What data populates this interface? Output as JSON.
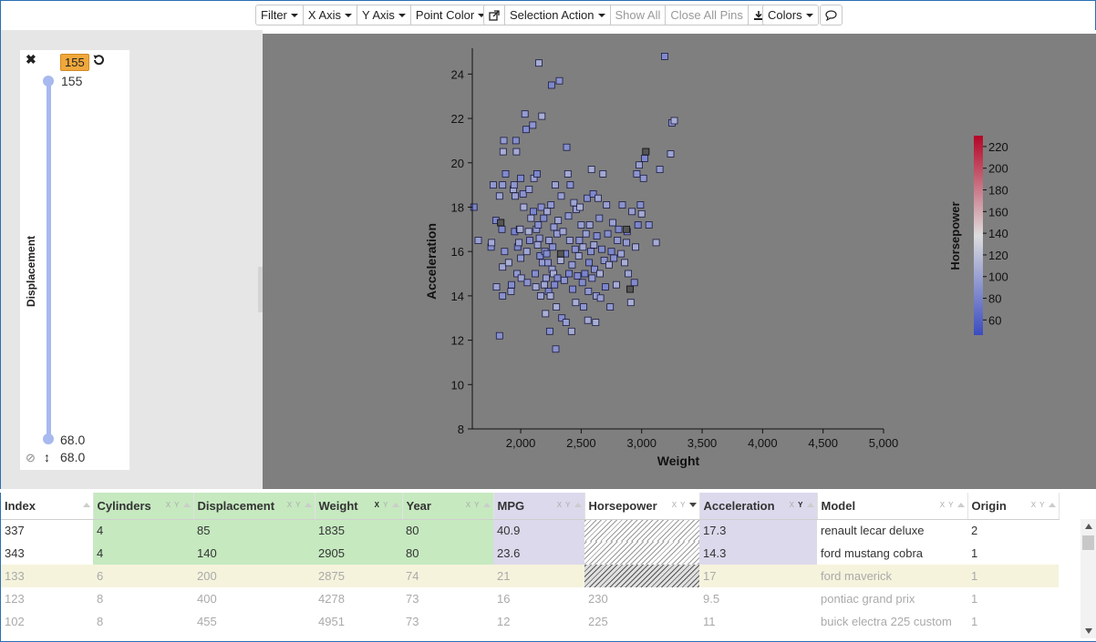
{
  "toolbar": {
    "filter": "Filter",
    "x_axis": "X Axis",
    "y_axis": "Y Axis",
    "point_color": "Point Color",
    "selection_action": "Selection Action",
    "show_all": "Show All",
    "close_all_pins": "Close All Pins",
    "colors": "Colors"
  },
  "filter_panel": {
    "field": "Displacement",
    "badge": "155",
    "upper_value": "155",
    "lower_value": "68.0",
    "lower_value_2": "68.0"
  },
  "chart_data": {
    "type": "scatter",
    "xlabel": "Weight",
    "ylabel": "Acceleration",
    "xlim": [
      1600,
      5000
    ],
    "ylim": [
      8,
      25
    ],
    "x_ticks": [
      "2,000",
      "2,500",
      "3,000",
      "3,500",
      "4,000",
      "4,500",
      "5,000"
    ],
    "x_tick_values": [
      2000,
      2500,
      3000,
      3500,
      4000,
      4500,
      5000
    ],
    "y_ticks": [
      "8",
      "10",
      "12",
      "14",
      "16",
      "18",
      "20",
      "22",
      "24"
    ],
    "y_tick_values": [
      8,
      10,
      12,
      14,
      16,
      18,
      20,
      22,
      24
    ],
    "legend": {
      "title": "Horsepower",
      "ticks": [
        "60",
        "80",
        "100",
        "120",
        "140",
        "160",
        "180",
        "200",
        "220"
      ],
      "tick_values": [
        60,
        80,
        100,
        120,
        140,
        160,
        180,
        200,
        220
      ],
      "min": 46,
      "max": 230,
      "placement": "right"
    },
    "colors": {
      "low": "#3b4cc0",
      "mid": "#dddddd",
      "high": "#b40426",
      "missing": "#555555"
    },
    "points": [
      [
        1613,
        18
      ],
      [
        1649,
        16.5
      ],
      [
        1755,
        16.2
      ],
      [
        1760,
        16.4
      ],
      [
        1773,
        19
      ],
      [
        1795,
        17.4
      ],
      [
        1800,
        14.4
      ],
      [
        1825,
        12.2
      ],
      [
        1835,
        17.3
      ],
      [
        1850,
        19
      ],
      [
        1845,
        17
      ],
      [
        1825,
        18.5
      ],
      [
        1850,
        14
      ],
      [
        1855,
        20.5
      ],
      [
        1860,
        21
      ],
      [
        1875,
        19.5
      ],
      [
        1850,
        15.3
      ],
      [
        1867,
        16
      ],
      [
        1900,
        15.5
      ],
      [
        1920,
        14.2
      ],
      [
        1925,
        14.5
      ],
      [
        1940,
        18.8
      ],
      [
        1945,
        19
      ],
      [
        1950,
        16.9
      ],
      [
        1955,
        18.5
      ],
      [
        1960,
        21
      ],
      [
        1965,
        20.5
      ],
      [
        1970,
        15
      ],
      [
        1975,
        16.2
      ],
      [
        1985,
        16.4
      ],
      [
        1990,
        17
      ],
      [
        1995,
        17
      ],
      [
        2000,
        15.7
      ],
      [
        2000,
        19.3
      ],
      [
        2005,
        14.8
      ],
      [
        2020,
        18.6
      ],
      [
        2025,
        18
      ],
      [
        2035,
        22.2
      ],
      [
        2045,
        21.5
      ],
      [
        2050,
        16
      ],
      [
        2055,
        14.6
      ],
      [
        2065,
        16.9
      ],
      [
        2070,
        18.8
      ],
      [
        2075,
        16.5
      ],
      [
        2085,
        17.5
      ],
      [
        2100,
        21.7
      ],
      [
        2105,
        17.8
      ],
      [
        2110,
        19.3
      ],
      [
        2120,
        15
      ],
      [
        2125,
        14.4
      ],
      [
        2130,
        17
      ],
      [
        2135,
        19.5
      ],
      [
        2140,
        16.3
      ],
      [
        2145,
        17.2
      ],
      [
        2150,
        24.5
      ],
      [
        2155,
        16.6
      ],
      [
        2160,
        15.8
      ],
      [
        2165,
        14
      ],
      [
        2170,
        18
      ],
      [
        2175,
        22.1
      ],
      [
        2180,
        15.5
      ],
      [
        2190,
        17.5
      ],
      [
        2195,
        14.5
      ],
      [
        2200,
        16
      ],
      [
        2205,
        13.2
      ],
      [
        2210,
        14.8
      ],
      [
        2215,
        15.9
      ],
      [
        2220,
        17.8
      ],
      [
        2225,
        15.5
      ],
      [
        2230,
        14.2
      ],
      [
        2235,
        16.5
      ],
      [
        2240,
        12.4
      ],
      [
        2245,
        14
      ],
      [
        2250,
        18.1
      ],
      [
        2255,
        23.5
      ],
      [
        2260,
        15.2
      ],
      [
        2265,
        16.2
      ],
      [
        2270,
        15
      ],
      [
        2275,
        17.1
      ],
      [
        2280,
        14.5
      ],
      [
        2285,
        19
      ],
      [
        2290,
        11.6
      ],
      [
        2295,
        13.5
      ],
      [
        2300,
        16.8
      ],
      [
        2305,
        14.8
      ],
      [
        2310,
        17.4
      ],
      [
        2320,
        23.7
      ],
      [
        2330,
        15.6
      ],
      [
        2335,
        18.5
      ],
      [
        2340,
        13
      ],
      [
        2350,
        16.9
      ],
      [
        2360,
        14.7
      ],
      [
        2370,
        15.9
      ],
      [
        2375,
        12.8
      ],
      [
        2380,
        20.7
      ],
      [
        2390,
        19.5
      ],
      [
        2395,
        17.6
      ],
      [
        2400,
        15
      ],
      [
        2405,
        16.5
      ],
      [
        2410,
        19
      ],
      [
        2420,
        12.4
      ],
      [
        2425,
        15.4
      ],
      [
        2430,
        14.3
      ],
      [
        2440,
        18.2
      ],
      [
        2450,
        16.1
      ],
      [
        2455,
        13.7
      ],
      [
        2460,
        17.9
      ],
      [
        2470,
        14.9
      ],
      [
        2480,
        15.8
      ],
      [
        2485,
        16.5
      ],
      [
        2490,
        18
      ],
      [
        2500,
        17.2
      ],
      [
        2510,
        14.6
      ],
      [
        2515,
        16.2
      ],
      [
        2520,
        13.5
      ],
      [
        2530,
        15
      ],
      [
        2540,
        16.8
      ],
      [
        2550,
        18.4
      ],
      [
        2555,
        12.9
      ],
      [
        2560,
        14.2
      ],
      [
        2565,
        15.5
      ],
      [
        2570,
        17.2
      ],
      [
        2580,
        16
      ],
      [
        2585,
        19.7
      ],
      [
        2590,
        14.8
      ],
      [
        2600,
        18.6
      ],
      [
        2605,
        16.3
      ],
      [
        2610,
        15.2
      ],
      [
        2620,
        12.8
      ],
      [
        2625,
        14
      ],
      [
        2630,
        16.7
      ],
      [
        2640,
        18.4
      ],
      [
        2650,
        17.5
      ],
      [
        2655,
        15
      ],
      [
        2660,
        13.9
      ],
      [
        2670,
        16.1
      ],
      [
        2680,
        19.5
      ],
      [
        2690,
        15.6
      ],
      [
        2700,
        14.4
      ],
      [
        2710,
        18.1
      ],
      [
        2720,
        16.8
      ],
      [
        2730,
        15.4
      ],
      [
        2740,
        13.5
      ],
      [
        2750,
        16
      ],
      [
        2760,
        17.3
      ],
      [
        2770,
        15.7
      ],
      [
        2790,
        14.5
      ],
      [
        2800,
        16.5
      ],
      [
        2810,
        17
      ],
      [
        2830,
        15.9
      ],
      [
        2840,
        18.1
      ],
      [
        2860,
        15.5
      ],
      [
        2875,
        16.4
      ],
      [
        2880,
        16.9
      ],
      [
        2890,
        15
      ],
      [
        2905,
        14.3
      ],
      [
        2910,
        13.7
      ],
      [
        2920,
        17.8
      ],
      [
        2940,
        14.6
      ],
      [
        2950,
        16.2
      ],
      [
        2960,
        19.5
      ],
      [
        2970,
        17.2
      ],
      [
        2980,
        19.9
      ],
      [
        2990,
        18.1
      ],
      [
        3000,
        17.7
      ],
      [
        3015,
        19.3
      ],
      [
        3025,
        20.2
      ],
      [
        3035,
        20.5
      ],
      [
        3060,
        17.2
      ],
      [
        3120,
        16.4
      ],
      [
        3150,
        19.7
      ],
      [
        3190,
        24.8
      ],
      [
        3240,
        20.4
      ],
      [
        3250,
        21.8
      ],
      [
        3270,
        21.9
      ]
    ]
  },
  "table": {
    "columns": [
      "Index",
      "Cylinders",
      "Displacement",
      "Weight",
      "Year",
      "MPG",
      "Horsepower",
      "Acceleration",
      "Model",
      "Origin"
    ],
    "rows": [
      {
        "index": "337",
        "cylinders": "4",
        "displacement": "85",
        "weight": "1835",
        "year": "80",
        "mpg": "40.9",
        "horsepower": "",
        "acceleration": "17.3",
        "model": "renault lecar deluxe",
        "origin": "2"
      },
      {
        "index": "343",
        "cylinders": "4",
        "displacement": "140",
        "weight": "2905",
        "year": "80",
        "mpg": "23.6",
        "horsepower": "",
        "acceleration": "14.3",
        "model": "ford mustang cobra",
        "origin": "1"
      },
      {
        "index": "133",
        "cylinders": "6",
        "displacement": "200",
        "weight": "2875",
        "year": "74",
        "mpg": "21",
        "horsepower": "",
        "acceleration": "17",
        "model": "ford maverick",
        "origin": "1"
      },
      {
        "index": "123",
        "cylinders": "8",
        "displacement": "400",
        "weight": "4278",
        "year": "73",
        "mpg": "16",
        "horsepower": "230",
        "acceleration": "9.5",
        "model": "pontiac grand prix",
        "origin": "1"
      },
      {
        "index": "102",
        "cylinders": "8",
        "displacement": "455",
        "weight": "4951",
        "year": "73",
        "mpg": "12",
        "horsepower": "225",
        "acceleration": "11",
        "model": "buick electra 225 custom",
        "origin": "1"
      }
    ]
  }
}
